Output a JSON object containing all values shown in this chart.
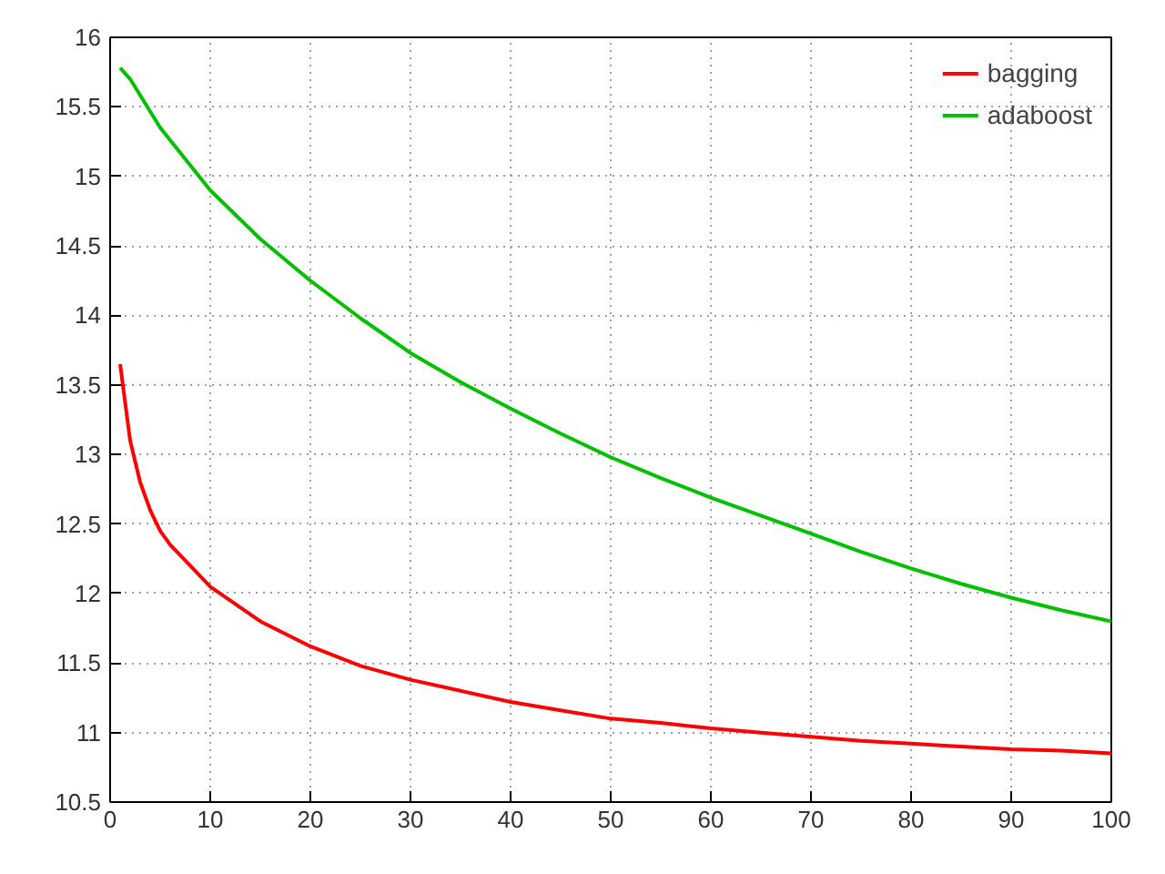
{
  "chart_data": {
    "type": "line",
    "xlim": [
      0,
      100
    ],
    "xticks": [
      0,
      10,
      20,
      30,
      40,
      50,
      60,
      70,
      80,
      90,
      100
    ],
    "ylim": [
      10.5,
      16
    ],
    "yticks": [
      10.5,
      11,
      11.5,
      12,
      12.5,
      13,
      13.5,
      14,
      14.5,
      15,
      15.5,
      16
    ],
    "grid": true,
    "legend": "top right",
    "marker": "none",
    "line_style": "solid",
    "series": [
      {
        "name": "bagging",
        "color": "#ff0000",
        "x": [
          1,
          2,
          3,
          4,
          5,
          6,
          8,
          10,
          12,
          15,
          20,
          25,
          30,
          35,
          40,
          45,
          50,
          55,
          60,
          65,
          70,
          75,
          80,
          85,
          90,
          95,
          100
        ],
        "values": [
          13.65,
          13.1,
          12.8,
          12.6,
          12.45,
          12.35,
          12.2,
          12.05,
          11.95,
          11.8,
          11.62,
          11.48,
          11.38,
          11.3,
          11.22,
          11.16,
          11.1,
          11.07,
          11.03,
          11.0,
          10.97,
          10.94,
          10.92,
          10.9,
          10.88,
          10.87,
          10.85
        ]
      },
      {
        "name": "adaboost",
        "color": "#00c000",
        "x": [
          1,
          2,
          5,
          10,
          15,
          20,
          25,
          30,
          35,
          40,
          45,
          50,
          55,
          60,
          65,
          70,
          75,
          80,
          85,
          90,
          95,
          100
        ],
        "values": [
          15.78,
          15.7,
          15.35,
          14.9,
          14.55,
          14.25,
          13.98,
          13.73,
          13.52,
          13.33,
          13.15,
          12.98,
          12.83,
          12.69,
          12.56,
          12.43,
          12.3,
          12.18,
          12.07,
          11.97,
          11.88,
          11.8
        ]
      }
    ]
  }
}
